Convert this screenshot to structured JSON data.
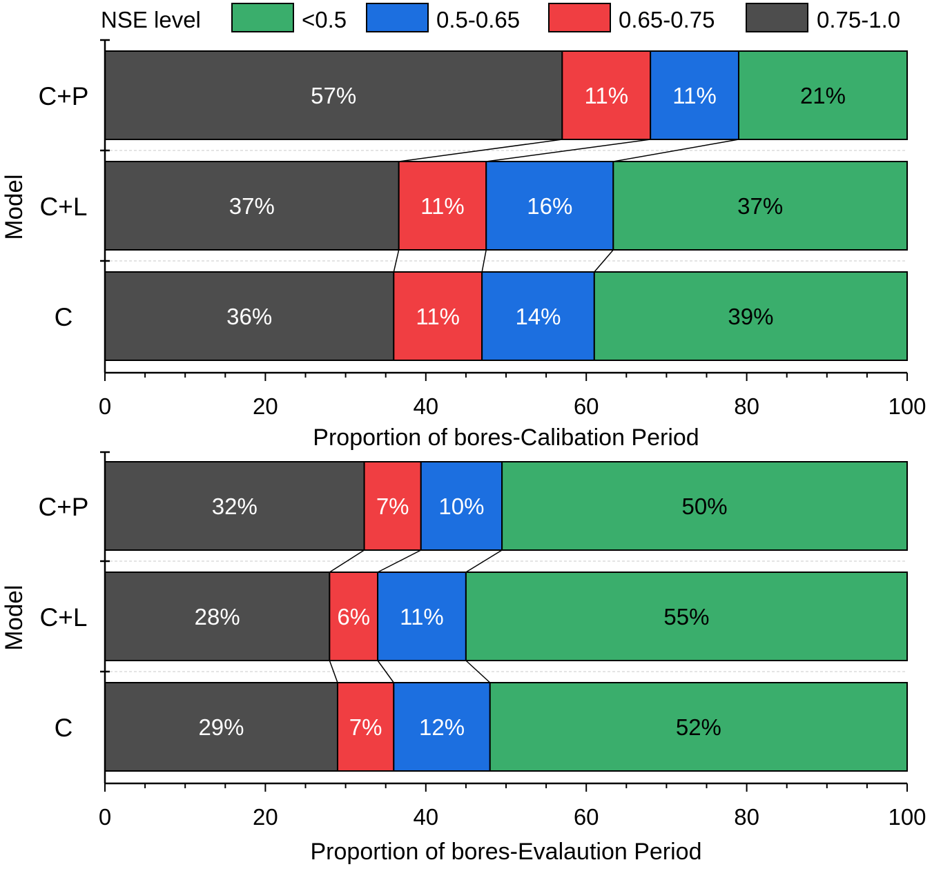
{
  "legend": {
    "title": "NSE level",
    "entries": [
      {
        "label": "<0.5",
        "color": "#3aae6c"
      },
      {
        "label": "0.5-0.65",
        "color": "#1c6fe0"
      },
      {
        "label": "0.65-0.75",
        "color": "#f03e42"
      },
      {
        "label": "0.75-1.0",
        "color": "#4d4d4d"
      }
    ]
  },
  "chart_data": [
    {
      "type": "bar",
      "orientation": "horizontal-stacked",
      "title": "",
      "xlabel": "Proportion of bores-Calibation Period",
      "ylabel": "Model",
      "xlim": [
        0,
        100
      ],
      "xticks": [
        0,
        20,
        40,
        60,
        80,
        100
      ],
      "categories": [
        "C+P",
        "C+L",
        "C"
      ],
      "series": [
        {
          "name": "0.75-1.0",
          "values": [
            57,
            37,
            36
          ],
          "labels": [
            "57%",
            "37%",
            "36%"
          ],
          "color": "#4d4d4d",
          "label_color": "#ffffff"
        },
        {
          "name": "0.65-0.75",
          "values": [
            11,
            11,
            11
          ],
          "labels": [
            "11%",
            "11%",
            "11%"
          ],
          "color": "#f03e42",
          "label_color": "#ffffff"
        },
        {
          "name": "0.5-0.65",
          "values": [
            11,
            16,
            14
          ],
          "labels": [
            "11%",
            "16%",
            "14%"
          ],
          "color": "#1c6fe0",
          "label_color": "#ffffff"
        },
        {
          "name": "<0.5",
          "values": [
            21,
            37,
            39
          ],
          "labels": [
            "21%",
            "37%",
            "39%"
          ],
          "color": "#3aae6c",
          "label_color": "#000000"
        }
      ]
    },
    {
      "type": "bar",
      "orientation": "horizontal-stacked",
      "title": "",
      "xlabel": "Proportion of bores-Evalaution Period",
      "ylabel": "Model",
      "xlim": [
        0,
        100
      ],
      "xticks": [
        0,
        20,
        40,
        60,
        80,
        100
      ],
      "categories": [
        "C+P",
        "C+L",
        "C"
      ],
      "series": [
        {
          "name": "0.75-1.0",
          "values": [
            32,
            28,
            29
          ],
          "labels": [
            "32%",
            "28%",
            "29%"
          ],
          "color": "#4d4d4d",
          "label_color": "#ffffff"
        },
        {
          "name": "0.65-0.75",
          "values": [
            7,
            6,
            7
          ],
          "labels": [
            "7%",
            "6%",
            "7%"
          ],
          "color": "#f03e42",
          "label_color": "#ffffff"
        },
        {
          "name": "0.5-0.65",
          "values": [
            10,
            11,
            12
          ],
          "labels": [
            "10%",
            "11%",
            "12%"
          ],
          "color": "#1c6fe0",
          "label_color": "#ffffff"
        },
        {
          "name": "<0.5",
          "values": [
            50,
            55,
            52
          ],
          "labels": [
            "50%",
            "55%",
            "52%"
          ],
          "color": "#3aae6c",
          "label_color": "#000000"
        }
      ]
    }
  ]
}
